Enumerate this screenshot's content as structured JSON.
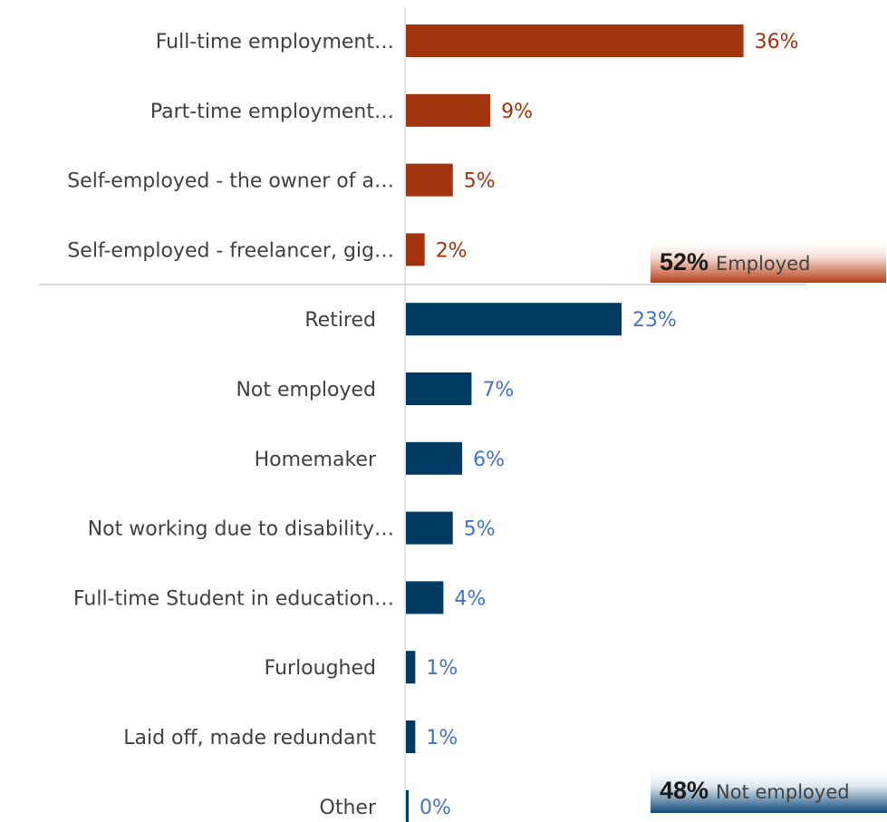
{
  "chart_data": {
    "type": "bar",
    "orientation": "horizontal",
    "categories": [
      "Full-time employment…",
      "Part-time employment…",
      "Self-employed - the owner of a…",
      "Self-employed - freelancer, gig…",
      "Retired",
      "Not employed",
      "Homemaker",
      "Not working due to disability…",
      "Full-time Student in education…",
      "Furloughed",
      "Laid off, made redundant",
      "Other"
    ],
    "values": [
      36,
      9,
      5,
      2,
      23,
      7,
      6,
      5,
      4,
      1,
      1,
      0
    ],
    "value_labels": [
      "36%",
      "9%",
      "5%",
      "2%",
      "23%",
      "7%",
      "6%",
      "5%",
      "4%",
      "1%",
      "1%",
      "0%"
    ],
    "groups": [
      {
        "key": "employed",
        "count": 4,
        "bar_color": "#a1330d",
        "label_color": "#a1330d",
        "summary_value": "52%",
        "summary_label": "Employed"
      },
      {
        "key": "not_employed",
        "count": 8,
        "bar_color": "#003b63",
        "label_color": "#4472c4",
        "summary_value": "48%",
        "summary_label": "Not employed"
      }
    ],
    "xlim": [
      0,
      40
    ],
    "grid": false,
    "title": "",
    "xlabel": "",
    "ylabel": ""
  }
}
